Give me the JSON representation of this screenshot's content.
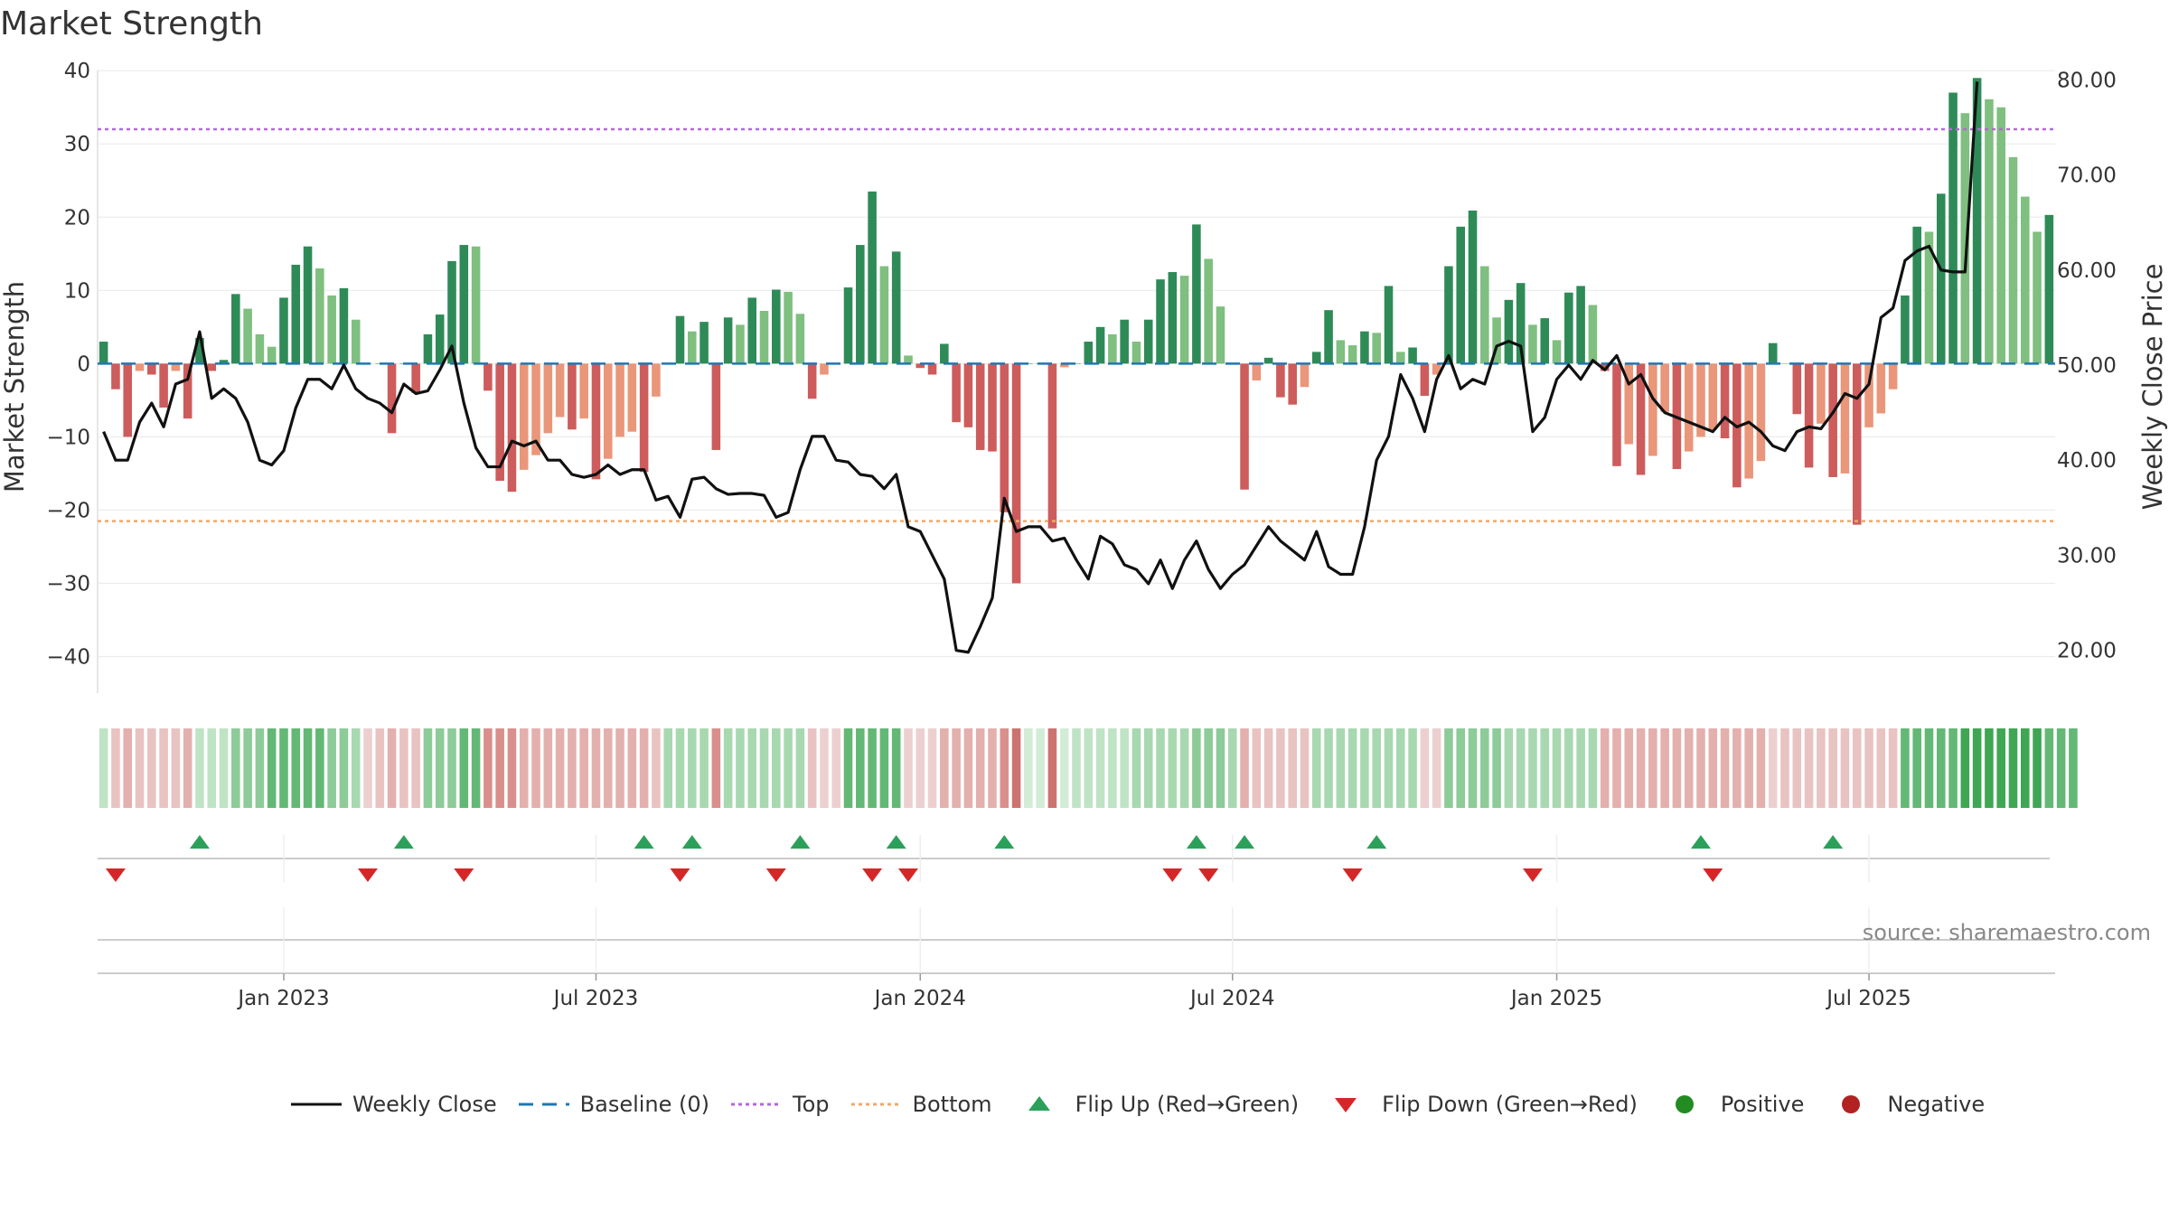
{
  "title": "Market Strength",
  "source": "source: sharemaestro.com",
  "colors": {
    "strong_green": "#2e8b57",
    "light_green": "#7fbf7f",
    "strong_red": "#cd5c5c",
    "light_red": "#e9967a",
    "top_line": "#b569d8",
    "bottom_line": "#f0a868",
    "baseline": "#1f77b4",
    "flip_up": "#2ca05a",
    "flip_down": "#d62728",
    "positive": "#228b22",
    "negative": "#b22222"
  },
  "chart_data": {
    "type": "bar",
    "xlabel": "",
    "ylabel": "Market Strength",
    "y2label": "Weekly Close Price",
    "ylim": [
      -45,
      42
    ],
    "y2lim": [
      15.5,
      82.5
    ],
    "yticks": [
      -40,
      -30,
      -20,
      -10,
      0,
      10,
      20,
      30,
      40
    ],
    "yticklabels": [
      "−40",
      "−30",
      "−20",
      "−10",
      "0",
      "10",
      "20",
      "30",
      "40"
    ],
    "y2ticks": [
      20,
      30,
      40,
      50,
      60,
      70,
      80
    ],
    "y2ticklabels": [
      "20.00",
      "30.00",
      "40.00",
      "50.00",
      "60.00",
      "70.00",
      "80.00"
    ],
    "xticklabels": [
      "Jan 2023",
      "Jul 2023",
      "Jan 2024",
      "Jul 2024",
      "Jan 2025",
      "Jul 2025"
    ],
    "xtick_weeks": [
      15,
      41,
      68,
      94,
      121,
      147
    ],
    "top": 32,
    "bottom": -21.5,
    "market_strength": [
      3,
      -3.5,
      -10,
      -1,
      -1.5,
      -6,
      -1,
      -7.5,
      3.5,
      -1,
      0.5,
      9.5,
      7.5,
      4,
      2.3,
      9,
      13.5,
      16,
      13,
      9.3,
      10.3,
      6,
      0,
      0,
      -9.5,
      0,
      -4,
      4,
      6.7,
      14,
      16.2,
      16,
      -3.7,
      -16,
      -17.5,
      -14.5,
      -12.5,
      -9.5,
      -7.3,
      -9,
      -7.5,
      -15.8,
      -13,
      -10,
      -9.3,
      -14.8,
      -4.5,
      0,
      6.5,
      4.4,
      5.7,
      -11.8,
      6.3,
      5.3,
      9,
      7.2,
      10.1,
      9.8,
      6.8,
      -4.8,
      -1.5,
      0,
      10.4,
      16.2,
      23.5,
      13.3,
      15.3,
      1.1,
      -0.6,
      -1.5,
      2.7,
      -8,
      -8.7,
      -11.8,
      -12,
      -20.3,
      -30,
      0,
      0,
      -22.5,
      -0.5,
      0,
      3,
      5,
      4,
      6,
      3,
      6,
      11.5,
      12.5,
      12,
      19,
      14.3,
      7.8,
      0,
      -17.2,
      -2.3,
      0.8,
      -4.6,
      -5.6,
      -3.2,
      1.6,
      7.3,
      3.2,
      2.5,
      4.4,
      4.2,
      10.6,
      1.6,
      2.2,
      -4.4,
      -1.5,
      13.3,
      18.7,
      20.9,
      13.3,
      6.3,
      8.7,
      11,
      5.3,
      6.2,
      3.2,
      9.7,
      10.6,
      8,
      -1,
      -14,
      -11,
      -15.2,
      -12.6,
      -6.6,
      -14.4,
      -12,
      -10,
      -9,
      -10.2,
      -16.9,
      -15.7,
      -13.3,
      2.8,
      0,
      -6.9,
      -14.2,
      -8.2,
      -15.5,
      -15,
      -22,
      -8.7,
      -6.8,
      -3.5,
      9.3,
      18.7,
      18,
      23.2,
      37,
      34.2,
      39,
      36.1,
      35,
      28.2,
      22.8,
      18,
      20.3
    ],
    "weekly_close": [
      43,
      40,
      40,
      44,
      46,
      43.5,
      48,
      48.5,
      53.5,
      46.5,
      47.5,
      46.5,
      44,
      40,
      39.5,
      41,
      45.5,
      48.5,
      48.5,
      47.5,
      50,
      47.5,
      46.5,
      46,
      45,
      48,
      47,
      47.3,
      49.5,
      52,
      46,
      41.3,
      39.3,
      39.3,
      42,
      41.5,
      42,
      40,
      40,
      38.5,
      38.2,
      38.5,
      39.5,
      38.5,
      39,
      39,
      35.8,
      36.2,
      34,
      38,
      38.2,
      37,
      36.4,
      36.5,
      36.5,
      36.3,
      34,
      34.5,
      39,
      42.5,
      42.5,
      40,
      39.8,
      38.5,
      38.3,
      37,
      38.5,
      33,
      32.5,
      30,
      27.5,
      20,
      19.8,
      22.5,
      25.5,
      36,
      32.5,
      33,
      33,
      31.5,
      31.8,
      29.5,
      27.5,
      32,
      31.2,
      29,
      28.5,
      27,
      29.5,
      26.5,
      29.5,
      31.5,
      28.5,
      26.5,
      28,
      29,
      31,
      33,
      31.5,
      30.5,
      29.5,
      32.5,
      28.8,
      28,
      28,
      33,
      40,
      42.5,
      49,
      46.5,
      43,
      48.5,
      51,
      47.5,
      48.5,
      48,
      52,
      52.5,
      52,
      43,
      44.5,
      48.5,
      50,
      48.5,
      50.5,
      49.5,
      51,
      48,
      49,
      46.5,
      45,
      44.5,
      44,
      43.5,
      43,
      44.5,
      43.5,
      44,
      43,
      41.5,
      41,
      43,
      43.5,
      43.3,
      45,
      47,
      46.5,
      48,
      55,
      56,
      61,
      62,
      62.5,
      60,
      59.8,
      59.8,
      79.8
    ],
    "regime_shading": [
      1,
      -2,
      -3,
      -2,
      -2,
      -2,
      -2,
      -3,
      1,
      1,
      1,
      3,
      3,
      3,
      4,
      4,
      4,
      4,
      4,
      3,
      3,
      2,
      -1,
      -2,
      -3,
      -2,
      -2,
      3,
      3,
      3,
      4,
      4,
      -4,
      -4,
      -4,
      -3,
      -3,
      -3,
      -3,
      -3,
      -3,
      -3,
      -3,
      -3,
      -3,
      -3,
      -2,
      2,
      2,
      2,
      2,
      -4,
      2,
      2,
      2,
      2,
      2,
      2,
      2,
      -2,
      -1,
      -1,
      4,
      4,
      4,
      4,
      4,
      -1,
      -1,
      -1,
      -3,
      -3,
      -3,
      -3,
      -3,
      -4,
      -5,
      0,
      0,
      -5,
      0,
      1,
      1,
      1,
      1,
      1,
      2,
      2,
      2,
      2,
      2,
      3,
      3,
      3,
      2,
      -3,
      -2,
      -2,
      -2,
      -2,
      -2,
      2,
      2,
      2,
      2,
      2,
      2,
      2,
      2,
      2,
      -1,
      -1,
      3,
      3,
      3,
      3,
      3,
      2,
      2,
      2,
      2,
      2,
      2,
      2,
      2,
      -3,
      -3,
      -3,
      -3,
      -3,
      -3,
      -3,
      -3,
      -3,
      -3,
      -3,
      -3,
      -3,
      -3,
      -1,
      -2,
      -2,
      -2,
      -2,
      -2,
      -2,
      -2,
      -2,
      -2,
      -2,
      4,
      4,
      4,
      4,
      4,
      5,
      5,
      5,
      5,
      5,
      5,
      5,
      4,
      4,
      4
    ],
    "flip_up_weeks": [
      8,
      25,
      45,
      49,
      58,
      66,
      75,
      91,
      95,
      106,
      133,
      144
    ],
    "flip_down_weeks": [
      1,
      22,
      30,
      48,
      56,
      64,
      67,
      89,
      92,
      104,
      119,
      134
    ],
    "series": [
      {
        "name": "Weekly Close",
        "axis": "right"
      },
      {
        "name": "Market Strength",
        "axis": "left"
      }
    ],
    "legend": [
      "Weekly Close",
      "Baseline (0)",
      "Top",
      "Bottom",
      "Flip Up (Red→Green)",
      "Flip Down (Green→Red)",
      "Positive",
      "Negative"
    ],
    "legend_position": "bottom"
  }
}
